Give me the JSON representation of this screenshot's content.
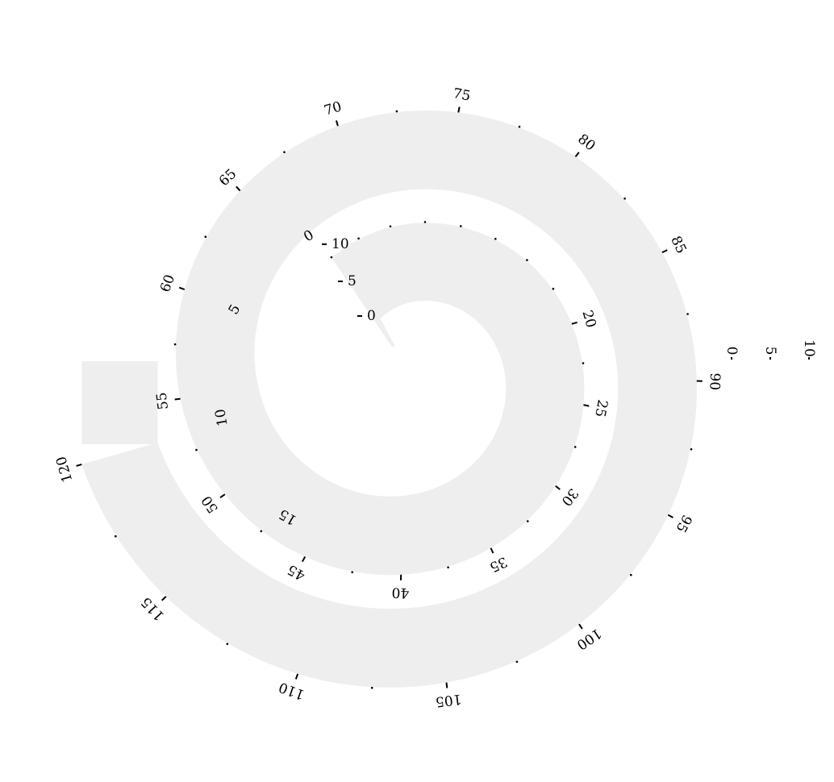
{
  "chart_data": {
    "type": "spiral",
    "title": "",
    "grid": false,
    "legend": "none",
    "main_track": {
      "range": [
        0,
        120
      ],
      "labeled_ticks": [
        20,
        25,
        30,
        35,
        40,
        45,
        50,
        55,
        60,
        65,
        70,
        75,
        80,
        85,
        90,
        95,
        100,
        105,
        110,
        115,
        120
      ],
      "minor_tick_step": 2.5
    },
    "inner_sector": {
      "range": [
        0,
        10
      ],
      "labeled_ticks": [
        "0",
        "5",
        "10"
      ]
    },
    "inner_track_ticks": [
      "0",
      "5",
      "10",
      "15"
    ],
    "end_sector": {
      "range": [
        0,
        10
      ],
      "labeled_ticks": [
        "0",
        "5",
        "10"
      ]
    },
    "colors": {
      "band": "#eeeeee",
      "ticks": "#000000",
      "background": "#ffffff"
    }
  }
}
